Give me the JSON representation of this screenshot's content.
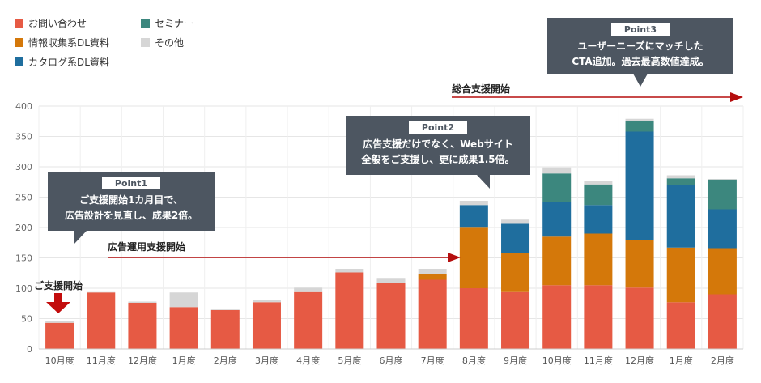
{
  "colors": {
    "inquiry": "#e65a44",
    "info_dl": "#d4780a",
    "catalog_dl": "#1f6e9e",
    "seminar": "#3c877e",
    "other": "#d6d6d6",
    "arrow": "#b50e0e",
    "callout_bg": "#4d5661"
  },
  "legend": [
    {
      "key": "inquiry",
      "label": "お問い合わせ"
    },
    {
      "key": "info_dl",
      "label": "情報収集系DL資料"
    },
    {
      "key": "catalog_dl",
      "label": "カタログ系DL資料"
    },
    {
      "key": "seminar",
      "label": "セミナー"
    },
    {
      "key": "other",
      "label": "その他"
    }
  ],
  "callouts": [
    {
      "badge": "Point1",
      "text": "ご支援開始1カ月目で、\n広告設計を見直し、成果2倍。"
    },
    {
      "badge": "Point2",
      "text": "広告支援だけでなく、Webサイト\n全般をご支援し、更に成果1.5倍。"
    },
    {
      "badge": "Point3",
      "text": "ユーザーニーズにマッチした\nCTA追加。過去最高数値達成。"
    }
  ],
  "milestones": {
    "start_label": "ご支援開始",
    "ad_ops_label": "広告運用支援開始",
    "full_label": "総合支援開始"
  },
  "chart_data": {
    "type": "bar",
    "stacked": true,
    "categories": [
      "10月度",
      "11月度",
      "12月度",
      "1月度",
      "2月度",
      "3月度",
      "4月度",
      "5月度",
      "6月度",
      "7月度",
      "8月度",
      "9月度",
      "10月度",
      "11月度",
      "12月度",
      "1月度",
      "2月度"
    ],
    "series": [
      {
        "name": "お問い合わせ",
        "color_key": "inquiry",
        "values": [
          43,
          93,
          76,
          69,
          64,
          77,
          95,
          126,
          108,
          114,
          100,
          95,
          105,
          105,
          101,
          77,
          90
        ]
      },
      {
        "name": "情報収集系DL資料",
        "color_key": "info_dl",
        "values": [
          0,
          0,
          0,
          0,
          0,
          0,
          0,
          0,
          0,
          9,
          101,
          63,
          80,
          85,
          78,
          90,
          76
        ]
      },
      {
        "name": "カタログ系DL資料",
        "color_key": "catalog_dl",
        "values": [
          0,
          0,
          0,
          0,
          0,
          0,
          0,
          0,
          0,
          0,
          36,
          48,
          57,
          47,
          179,
          103,
          64
        ]
      },
      {
        "name": "セミナー",
        "color_key": "seminar",
        "values": [
          0,
          0,
          0,
          0,
          0,
          0,
          0,
          0,
          0,
          0,
          0,
          0,
          47,
          34,
          18,
          11,
          49
        ]
      },
      {
        "name": "その他",
        "color_key": "other",
        "values": [
          3,
          2,
          2,
          24,
          1,
          3,
          6,
          6,
          9,
          9,
          7,
          7,
          10,
          6,
          3,
          5,
          1
        ]
      }
    ],
    "ylim": [
      0,
      400
    ],
    "yticks": [
      0,
      50,
      100,
      150,
      200,
      250,
      300,
      350,
      400
    ],
    "grid": true,
    "legend_position": "top-left"
  }
}
